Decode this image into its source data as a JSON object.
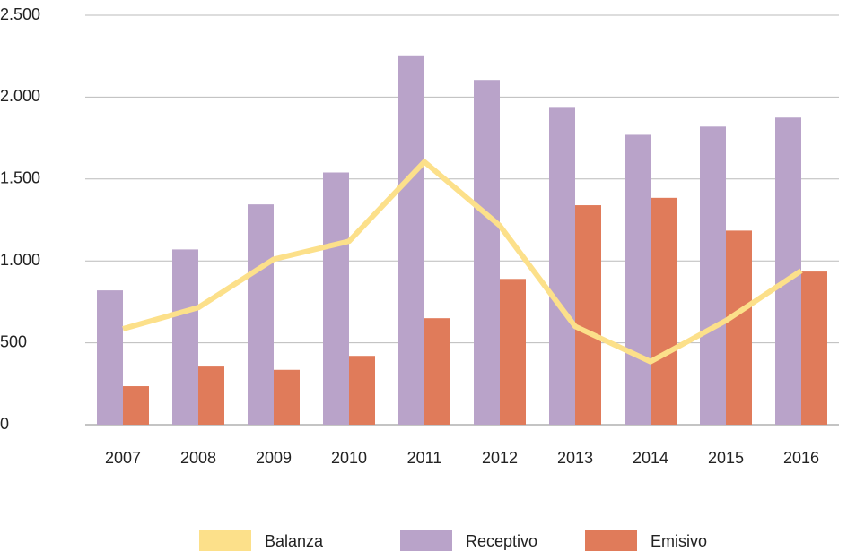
{
  "chart_data": {
    "type": "bar_line",
    "categories": [
      "2007",
      "2008",
      "2009",
      "2010",
      "2011",
      "2012",
      "2013",
      "2014",
      "2015",
      "2016"
    ],
    "series": [
      {
        "name": "Balanza",
        "color": "#fce08a",
        "type": "line",
        "values": [
          585,
          715,
          1010,
          1120,
          1605,
          1215,
          600,
          385,
          635,
          940
        ]
      },
      {
        "name": "Receptivo",
        "color": "#b9a3c9",
        "type": "bar",
        "values": [
          820,
          1070,
          1345,
          1540,
          2255,
          2105,
          1940,
          1770,
          1820,
          1875
        ]
      },
      {
        "name": "Emisivo",
        "color": "#e07b5a",
        "type": "bar",
        "values": [
          235,
          355,
          335,
          420,
          650,
          890,
          1340,
          1385,
          1185,
          935
        ]
      }
    ],
    "ylim": [
      0,
      2500
    ],
    "yticks": [
      0,
      500,
      {
        "value": 1000,
        "label": "1.000"
      },
      {
        "value": 1500,
        "label": "1.500"
      },
      {
        "value": 2000,
        "label": "2.000"
      },
      {
        "value": 2500,
        "label": "2.500"
      }
    ],
    "grid": true,
    "legend": "bottom"
  }
}
